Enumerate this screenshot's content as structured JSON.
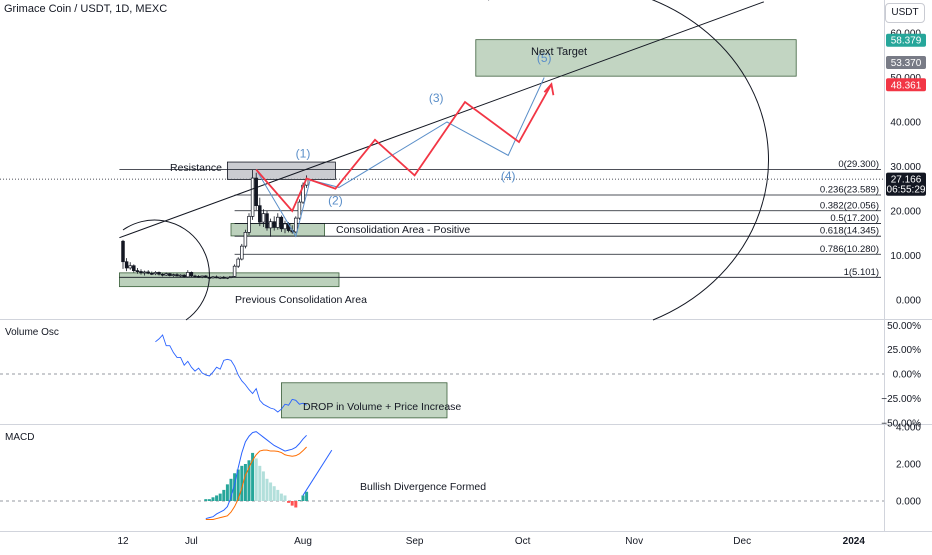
{
  "header": {
    "symbol_title": "Grimace Coin / USDT, 1D, MEXC",
    "currency_button": "USDT",
    "volume_osc_title": "Volume Osc",
    "macd_title": "MACD"
  },
  "price_axis": {
    "ticks": [
      "60.000",
      "50.000",
      "40.000",
      "30.000",
      "20.000",
      "10.000",
      "0.000"
    ],
    "tick_values": [
      60,
      50,
      40,
      30,
      20,
      10,
      0
    ]
  },
  "price_badges": [
    {
      "label": "58.379",
      "value": 58.379,
      "color": "#26a69a"
    },
    {
      "label": "53.370",
      "value": 53.37,
      "color": "#787b86"
    },
    {
      "label": "48.361",
      "value": 48.361,
      "color": "#f23645"
    },
    {
      "label": "27.166",
      "value": 27.166,
      "color": "#131722"
    },
    {
      "label": "06:55:29",
      "value": 24.9,
      "color": "#131722"
    }
  ],
  "volume_axis": {
    "ticks": [
      "50.00%",
      "25.00%",
      "0.00%",
      "−25.00%",
      "−50.00%"
    ],
    "tick_values": [
      50,
      25,
      0,
      -25,
      -50
    ]
  },
  "macd_axis": {
    "ticks": [
      "4.000",
      "2.000",
      "0.000"
    ],
    "tick_values": [
      4,
      2,
      0
    ]
  },
  "time_axis": {
    "labels": [
      "12",
      "Jul",
      "Aug",
      "Sep",
      "Oct",
      "Nov",
      "Dec",
      "2024"
    ],
    "day_index": [
      0,
      19,
      50,
      81,
      111,
      142,
      172,
      203
    ]
  },
  "fib_levels": [
    {
      "label": "0(29.300)",
      "value": 29.3
    },
    {
      "label": "0.236(23.589)",
      "value": 23.589
    },
    {
      "label": "0.382(20.056)",
      "value": 20.056
    },
    {
      "label": "0.5(17.200)",
      "value": 17.2
    },
    {
      "label": "0.618(14.345)",
      "value": 14.345
    },
    {
      "label": "0.786(10.280)",
      "value": 10.28
    },
    {
      "label": "1(5.101)",
      "value": 5.101
    }
  ],
  "annotations": {
    "resistance": "Resistance",
    "next_target": "Next Target",
    "consolidation_positive": "Consolidation Area - Positive",
    "previous_consolidation": "Previous Consolidation Area",
    "volume_drop": "DROP in Volume + Price Increase",
    "bullish_divergence": "Bullish Divergence Formed",
    "wave_1": "(1)",
    "wave_2": "(2)",
    "wave_3": "(3)",
    "wave_4": "(4)",
    "wave_5": "(5)"
  },
  "colors": {
    "up": "#26a69a",
    "down": "#ef5350",
    "projection_red": "#f23645",
    "projection_blue": "#5b8fc9",
    "zone_fill": "#8fb38f",
    "resistance_fill": "#a0a3ab",
    "wave_label": "#5b8fc9"
  },
  "chart_data": {
    "type": "candlestick",
    "title": "Grimace Coin / USDT, 1D, MEXC",
    "x_unit": "days since first bar (Jun 12)",
    "y_unit": "USDT",
    "ylim": [
      -4,
      62
    ],
    "grid": false,
    "candles": [
      {
        "d": 0,
        "o": 13.2,
        "h": 13.5,
        "l": 7.0,
        "c": 8.6
      },
      {
        "d": 1,
        "o": 8.6,
        "h": 9.4,
        "l": 6.5,
        "c": 7.2
      },
      {
        "d": 2,
        "o": 7.2,
        "h": 8.5,
        "l": 6.8,
        "c": 7.7
      },
      {
        "d": 3,
        "o": 7.7,
        "h": 8.0,
        "l": 6.2,
        "c": 6.6
      },
      {
        "d": 4,
        "o": 6.6,
        "h": 7.2,
        "l": 5.9,
        "c": 6.4
      },
      {
        "d": 5,
        "o": 6.4,
        "h": 6.9,
        "l": 5.7,
        "c": 6.1
      },
      {
        "d": 6,
        "o": 6.1,
        "h": 6.6,
        "l": 5.5,
        "c": 6.3
      },
      {
        "d": 7,
        "o": 6.3,
        "h": 6.7,
        "l": 5.8,
        "c": 6.0
      },
      {
        "d": 8,
        "o": 6.0,
        "h": 6.4,
        "l": 5.6,
        "c": 5.9
      },
      {
        "d": 9,
        "o": 5.9,
        "h": 6.5,
        "l": 5.6,
        "c": 6.2
      },
      {
        "d": 10,
        "o": 6.2,
        "h": 6.4,
        "l": 5.5,
        "c": 5.8
      },
      {
        "d": 11,
        "o": 5.8,
        "h": 6.0,
        "l": 5.3,
        "c": 5.6
      },
      {
        "d": 12,
        "o": 5.6,
        "h": 6.2,
        "l": 5.4,
        "c": 5.9
      },
      {
        "d": 13,
        "o": 5.9,
        "h": 6.1,
        "l": 5.3,
        "c": 5.5
      },
      {
        "d": 14,
        "o": 5.5,
        "h": 5.9,
        "l": 5.2,
        "c": 5.7
      },
      {
        "d": 15,
        "o": 5.7,
        "h": 6.0,
        "l": 5.3,
        "c": 5.4
      },
      {
        "d": 16,
        "o": 5.4,
        "h": 5.8,
        "l": 5.1,
        "c": 5.6
      },
      {
        "d": 17,
        "o": 5.6,
        "h": 5.8,
        "l": 5.0,
        "c": 5.2
      },
      {
        "d": 18,
        "o": 5.2,
        "h": 6.7,
        "l": 5.0,
        "c": 6.2
      },
      {
        "d": 19,
        "o": 6.2,
        "h": 6.4,
        "l": 5.1,
        "c": 5.4
      },
      {
        "d": 20,
        "o": 5.4,
        "h": 5.7,
        "l": 5.0,
        "c": 5.3
      },
      {
        "d": 21,
        "o": 5.3,
        "h": 5.6,
        "l": 5.0,
        "c": 5.2
      },
      {
        "d": 22,
        "o": 5.2,
        "h": 5.5,
        "l": 4.9,
        "c": 5.4
      },
      {
        "d": 23,
        "o": 5.4,
        "h": 5.6,
        "l": 5.0,
        "c": 5.1
      },
      {
        "d": 24,
        "o": 5.1,
        "h": 5.3,
        "l": 4.8,
        "c": 5.0
      },
      {
        "d": 25,
        "o": 5.0,
        "h": 5.4,
        "l": 4.8,
        "c": 5.2
      },
      {
        "d": 26,
        "o": 5.2,
        "h": 5.5,
        "l": 4.9,
        "c": 5.0
      },
      {
        "d": 27,
        "o": 5.0,
        "h": 5.3,
        "l": 4.7,
        "c": 5.1
      },
      {
        "d": 28,
        "o": 5.1,
        "h": 5.4,
        "l": 4.8,
        "c": 4.9
      },
      {
        "d": 29,
        "o": 4.9,
        "h": 5.2,
        "l": 4.7,
        "c": 5.1
      },
      {
        "d": 30,
        "o": 5.1,
        "h": 5.4,
        "l": 4.9,
        "c": 5.3
      },
      {
        "d": 31,
        "o": 5.3,
        "h": 8.0,
        "l": 5.1,
        "c": 7.6
      },
      {
        "d": 32,
        "o": 7.6,
        "h": 9.6,
        "l": 7.2,
        "c": 9.2
      },
      {
        "d": 33,
        "o": 9.2,
        "h": 12.6,
        "l": 8.9,
        "c": 12.1
      },
      {
        "d": 34,
        "o": 12.1,
        "h": 15.8,
        "l": 11.6,
        "c": 15.2
      },
      {
        "d": 35,
        "o": 15.2,
        "h": 19.5,
        "l": 14.6,
        "c": 18.8
      },
      {
        "d": 36,
        "o": 18.8,
        "h": 29.3,
        "l": 18.0,
        "c": 27.4
      },
      {
        "d": 37,
        "o": 27.4,
        "h": 28.6,
        "l": 20.2,
        "c": 21.2
      },
      {
        "d": 38,
        "o": 21.2,
        "h": 23.0,
        "l": 16.6,
        "c": 17.5
      },
      {
        "d": 39,
        "o": 17.5,
        "h": 20.4,
        "l": 16.4,
        "c": 19.4
      },
      {
        "d": 40,
        "o": 19.4,
        "h": 20.1,
        "l": 15.6,
        "c": 16.2
      },
      {
        "d": 41,
        "o": 16.2,
        "h": 18.3,
        "l": 14.2,
        "c": 17.6
      },
      {
        "d": 42,
        "o": 17.6,
        "h": 18.8,
        "l": 15.6,
        "c": 16.3
      },
      {
        "d": 43,
        "o": 16.3,
        "h": 19.5,
        "l": 15.8,
        "c": 18.6
      },
      {
        "d": 44,
        "o": 18.6,
        "h": 19.0,
        "l": 15.3,
        "c": 16.0
      },
      {
        "d": 45,
        "o": 16.0,
        "h": 17.8,
        "l": 15.0,
        "c": 17.1
      },
      {
        "d": 46,
        "o": 17.1,
        "h": 17.5,
        "l": 15.2,
        "c": 15.6
      },
      {
        "d": 47,
        "o": 15.6,
        "h": 16.8,
        "l": 14.9,
        "c": 15.3
      },
      {
        "d": 48,
        "o": 15.3,
        "h": 18.8,
        "l": 15.0,
        "c": 18.4
      },
      {
        "d": 49,
        "o": 18.4,
        "h": 22.6,
        "l": 18.0,
        "c": 22.0
      },
      {
        "d": 50,
        "o": 22.0,
        "h": 26.4,
        "l": 21.6,
        "c": 25.8
      },
      {
        "d": 51,
        "o": 25.8,
        "h": 28.0,
        "l": 25.2,
        "c": 27.166
      }
    ],
    "projection_red": [
      [
        37,
        29.3
      ],
      [
        47,
        20.0
      ],
      [
        51,
        27.3
      ],
      [
        59,
        25.0
      ],
      [
        70,
        36.0
      ],
      [
        81,
        28.0
      ],
      [
        95,
        44.5
      ],
      [
        110,
        35.5
      ],
      [
        119,
        48.5
      ]
    ],
    "projection_blue": [
      [
        37,
        29.3
      ],
      [
        48,
        14.3
      ],
      [
        52,
        27.0
      ],
      [
        60,
        25.3
      ],
      [
        90,
        40.0
      ],
      [
        107,
        32.5
      ],
      [
        117,
        50.0
      ]
    ],
    "wave_labels": [
      {
        "label": "(1)",
        "d": 50,
        "p": 32.0
      },
      {
        "label": "(2)",
        "d": 59,
        "p": 21.5
      },
      {
        "label": "(3)",
        "d": 87,
        "p": 44.5
      },
      {
        "label": "(4)",
        "d": 107,
        "p": 27.0
      },
      {
        "label": "(5)",
        "d": 117,
        "p": 53.5
      }
    ],
    "resistance_line": [
      [
        -1,
        14.0
      ],
      [
        178,
        67.0
      ]
    ],
    "resistance_box": {
      "d0": 29,
      "d1": 59,
      "p0": 27.1,
      "p1": 31.0
    },
    "target_box": {
      "d0": 98,
      "d1": 187,
      "p0": 50.3,
      "p1": 58.5
    },
    "consolidation_positive_box": {
      "d0": 30,
      "d1": 56,
      "p0": 14.4,
      "p1": 17.2
    },
    "previous_consolidation_box": {
      "d0": -1,
      "d1": 60,
      "p0": 3.0,
      "p1": 6.1
    },
    "volume_osc": {
      "days": [
        9,
        10,
        11,
        12,
        13,
        14,
        15,
        16,
        17,
        18,
        19,
        20,
        21,
        22,
        23,
        24,
        25,
        26,
        27,
        28,
        29,
        30,
        31,
        32,
        33,
        34,
        35,
        36,
        37,
        38,
        39,
        40,
        41,
        42,
        43,
        44,
        45,
        46,
        47,
        48,
        49,
        50,
        51
      ],
      "values": [
        33,
        36,
        40,
        29,
        29,
        22,
        17,
        17,
        9,
        13,
        7,
        3,
        6,
        1,
        -1,
        -2,
        2,
        7,
        5,
        14,
        15,
        14,
        8,
        -1,
        -7,
        -11,
        -16,
        -20,
        -15,
        -27,
        -31,
        -33,
        -35,
        -36,
        -39,
        -36,
        -31,
        -32,
        -26,
        -27,
        -31,
        -30,
        -32
      ]
    },
    "macd": {
      "days": [
        23,
        24,
        25,
        26,
        27,
        28,
        29,
        30,
        31,
        32,
        33,
        34,
        35,
        36,
        37,
        38,
        39,
        40,
        41,
        42,
        43,
        44,
        45,
        46,
        47,
        48,
        49,
        50,
        51
      ],
      "macd": [
        -0.95,
        -0.9,
        -0.85,
        -0.7,
        -0.6,
        -0.5,
        -0.3,
        0.2,
        0.9,
        1.8,
        2.6,
        3.2,
        3.5,
        3.7,
        3.75,
        3.6,
        3.45,
        3.3,
        3.15,
        3.0,
        2.9,
        2.8,
        2.7,
        2.75,
        2.8,
        2.9,
        3.1,
        3.35,
        3.55
      ],
      "signal": [
        -1.0,
        -1.0,
        -1.0,
        -0.95,
        -0.9,
        -0.85,
        -0.8,
        -0.6,
        -0.3,
        0.1,
        0.7,
        1.4,
        1.8,
        2.2,
        2.5,
        2.7,
        2.75,
        2.75,
        2.7,
        2.7,
        2.68,
        2.62,
        2.5,
        2.45,
        2.42,
        2.45,
        2.55,
        2.72,
        2.92
      ],
      "hist": [
        0.1,
        0.1,
        0.2,
        0.3,
        0.4,
        0.6,
        0.9,
        1.2,
        1.5,
        1.7,
        1.9,
        2.0,
        2.2,
        2.6,
        2.3,
        1.9,
        1.6,
        1.2,
        1.0,
        0.8,
        0.6,
        0.4,
        0.3,
        -0.1,
        -0.25,
        -0.35,
        0.05,
        0.3,
        0.5
      ],
      "divergence_line": [
        [
          50,
          0.3
        ],
        [
          58,
          2.75
        ]
      ]
    }
  }
}
